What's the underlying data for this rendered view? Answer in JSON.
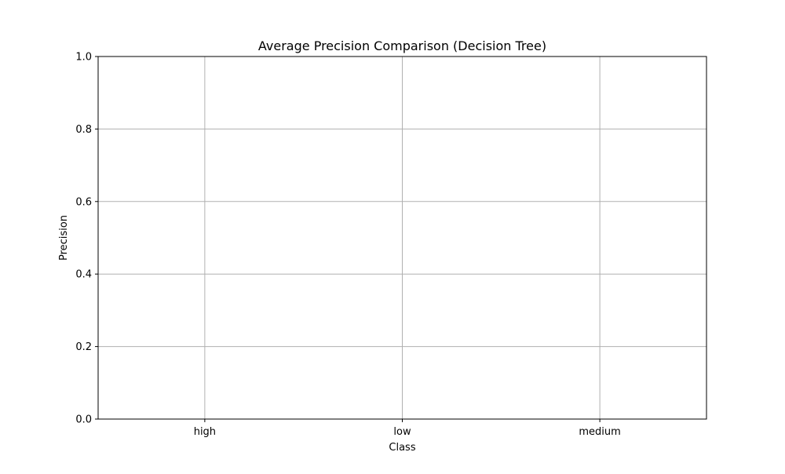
{
  "chart_data": {
    "type": "bar",
    "title": "Average Precision Comparison (Decision Tree)",
    "xlabel": "Class",
    "ylabel": "Precision",
    "categories": [
      "high",
      "low",
      "medium"
    ],
    "series": [],
    "ylim": [
      0,
      1.0
    ],
    "yticks": [
      0.0,
      0.2,
      0.4,
      0.6,
      0.8,
      1.0
    ],
    "ytick_labels": [
      "0.0",
      "0.2",
      "0.4",
      "0.6",
      "0.8",
      "1.0"
    ],
    "grid": true,
    "colors": {
      "grid": "#b0b0b0",
      "axis": "#000000",
      "background": "#ffffff"
    }
  }
}
